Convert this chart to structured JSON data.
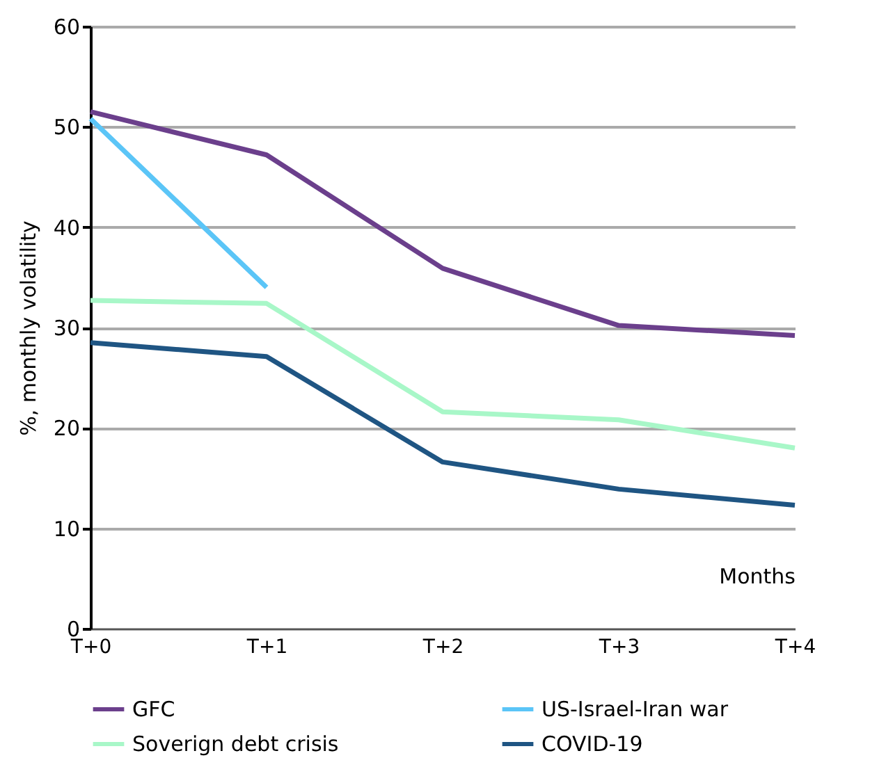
{
  "chart_data": {
    "type": "line",
    "xlabel": "Months",
    "ylabel": "%, monthly volatility",
    "categories": [
      "T+0",
      "T+1",
      "T+2",
      "T+3",
      "T+4"
    ],
    "series": [
      {
        "name": "GFC",
        "color": "#6b3f8c",
        "values": [
          51.5,
          47.2,
          35.9,
          30.2,
          29.2
        ]
      },
      {
        "name": "US-Israel-Iran war",
        "color": "#5bc5f7",
        "values": [
          50.8,
          34.0,
          null,
          null,
          null
        ]
      },
      {
        "name": "Soverign debt crisis",
        "color": "#a8f7c8",
        "values": [
          32.7,
          32.4,
          21.6,
          20.8,
          18.0
        ]
      },
      {
        "name": "COVID-19",
        "color": "#1f5583",
        "values": [
          28.5,
          27.1,
          16.6,
          13.9,
          12.3
        ]
      }
    ],
    "ylim": [
      0,
      60
    ],
    "yticks": [
      0,
      10,
      20,
      30,
      40,
      50,
      60
    ],
    "grid": "y",
    "legend": "bottom",
    "marker": "none",
    "line_style": "solid"
  }
}
